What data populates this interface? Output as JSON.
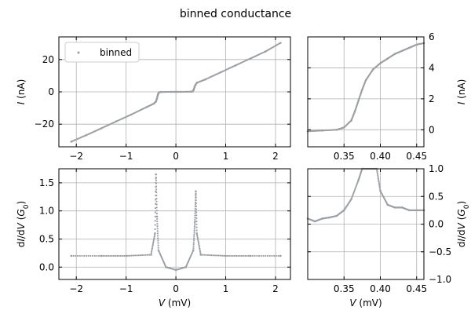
{
  "figure": {
    "title": "binned conductance"
  },
  "colors": {
    "points": "#9aa0a6",
    "grid": "#b0b0b0",
    "axes": "#000000",
    "legend_border": "#cccccc"
  },
  "chart_data": [
    {
      "id": "iv-full",
      "type": "scatter",
      "xlim": [
        -2.35,
        2.3
      ],
      "ylim": [
        -34,
        34
      ],
      "xticks": [
        -2,
        -1,
        0,
        1,
        2
      ],
      "yticks": [
        -20,
        0,
        20
      ],
      "xlabel": "",
      "ylabel": "I (nA)",
      "ytick_side": "left",
      "grid": true,
      "legend": {
        "position": "upper-left",
        "entries": [
          "binned"
        ]
      },
      "series": [
        {
          "name": "binned",
          "points": [
            [
              -2.1,
              -30.8
            ],
            [
              -1.8,
              -26.8
            ],
            [
              -1.5,
              -22.6
            ],
            [
              -1.2,
              -18.3
            ],
            [
              -0.9,
              -14.1
            ],
            [
              -0.6,
              -9.6
            ],
            [
              -0.45,
              -7.4
            ],
            [
              -0.4,
              -6.0
            ],
            [
              -0.38,
              -4.0
            ],
            [
              -0.36,
              -1.5
            ],
            [
              -0.34,
              -0.3
            ],
            [
              -0.3,
              -0.1
            ],
            [
              -0.1,
              0
            ],
            [
              0,
              0
            ],
            [
              0.1,
              0
            ],
            [
              0.3,
              0.1
            ],
            [
              0.34,
              0.3
            ],
            [
              0.36,
              1.5
            ],
            [
              0.38,
              3.6
            ],
            [
              0.42,
              5.6
            ],
            [
              0.6,
              7.8
            ],
            [
              0.9,
              12.1
            ],
            [
              1.2,
              16.4
            ],
            [
              1.5,
              20.7
            ],
            [
              1.8,
              25.0
            ],
            [
              2.1,
              30.3
            ]
          ]
        }
      ]
    },
    {
      "id": "iv-zoom",
      "type": "scatter",
      "xlim": [
        0.3,
        0.46
      ],
      "ylim": [
        -1.1,
        6.0
      ],
      "xticks": [
        0.35,
        0.4,
        0.45
      ],
      "yticks": [
        0,
        2,
        4,
        6
      ],
      "xlabel": "",
      "ylabel": "I (nA)",
      "ytick_side": "right",
      "grid": true,
      "series": [
        {
          "name": "binned",
          "points": [
            [
              0.3,
              -0.1
            ],
            [
              0.32,
              -0.05
            ],
            [
              0.34,
              0.0
            ],
            [
              0.35,
              0.15
            ],
            [
              0.36,
              0.6
            ],
            [
              0.365,
              1.2
            ],
            [
              0.37,
              1.9
            ],
            [
              0.375,
              2.6
            ],
            [
              0.38,
              3.2
            ],
            [
              0.39,
              3.9
            ],
            [
              0.4,
              4.3
            ],
            [
              0.41,
              4.6
            ],
            [
              0.42,
              4.9
            ],
            [
              0.43,
              5.1
            ],
            [
              0.44,
              5.3
            ],
            [
              0.45,
              5.5
            ],
            [
              0.46,
              5.6
            ]
          ]
        }
      ]
    },
    {
      "id": "didv-full",
      "type": "scatter",
      "xlim": [
        -2.35,
        2.3
      ],
      "ylim": [
        -0.22,
        1.75
      ],
      "xticks": [
        -2,
        -1,
        0,
        1,
        2
      ],
      "yticks": [
        0.0,
        0.5,
        1.0,
        1.5
      ],
      "xlabel": "V (mV)",
      "ylabel": "dI/dV (G0)",
      "ytick_side": "left",
      "grid": true,
      "series": [
        {
          "name": "binned",
          "points": [
            [
              -2.1,
              0.2
            ],
            [
              -1.5,
              0.2
            ],
            [
              -1.0,
              0.2
            ],
            [
              -0.5,
              0.22
            ],
            [
              -0.42,
              0.6
            ],
            [
              -0.4,
              1.65
            ],
            [
              -0.38,
              0.9
            ],
            [
              -0.35,
              0.3
            ],
            [
              -0.2,
              0.0
            ],
            [
              0,
              -0.05
            ],
            [
              0.2,
              0.0
            ],
            [
              0.35,
              0.3
            ],
            [
              0.38,
              0.8
            ],
            [
              0.4,
              1.35
            ],
            [
              0.42,
              0.6
            ],
            [
              0.5,
              0.22
            ],
            [
              1.0,
              0.2
            ],
            [
              1.5,
              0.2
            ],
            [
              2.1,
              0.2
            ]
          ]
        }
      ]
    },
    {
      "id": "didv-zoom",
      "type": "scatter",
      "xlim": [
        0.3,
        0.46
      ],
      "ylim": [
        -1.0,
        1.0
      ],
      "xticks": [
        0.35,
        0.4,
        0.45
      ],
      "yticks": [
        -1.0,
        -0.5,
        0.0,
        0.5,
        1.0
      ],
      "xlabel": "V (mV)",
      "ylabel": "dI/dV (G0)",
      "ytick_side": "right",
      "grid": true,
      "series": [
        {
          "name": "binned",
          "points": [
            [
              0.3,
              0.1
            ],
            [
              0.31,
              0.05
            ],
            [
              0.32,
              0.1
            ],
            [
              0.33,
              0.12
            ],
            [
              0.34,
              0.15
            ],
            [
              0.35,
              0.25
            ],
            [
              0.36,
              0.45
            ],
            [
              0.37,
              0.8
            ],
            [
              0.375,
              1.0
            ],
            [
              0.395,
              1.0
            ],
            [
              0.4,
              0.6
            ],
            [
              0.41,
              0.35
            ],
            [
              0.42,
              0.3
            ],
            [
              0.43,
              0.3
            ],
            [
              0.44,
              0.25
            ],
            [
              0.45,
              0.25
            ],
            [
              0.46,
              0.25
            ]
          ]
        }
      ]
    }
  ]
}
